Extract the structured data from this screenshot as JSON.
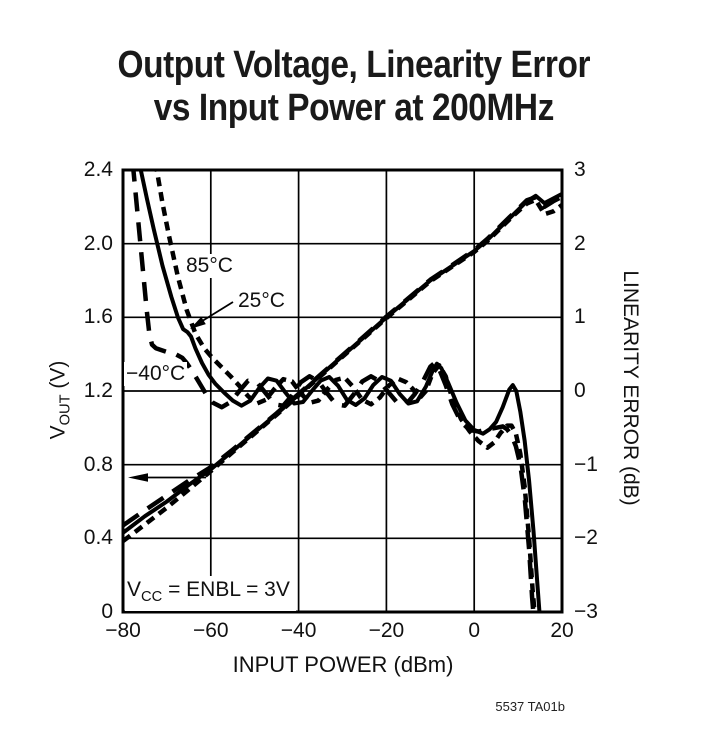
{
  "title": {
    "line1": "Output Voltage, Linearity Error",
    "line2": "vs Input Power at 200MHz"
  },
  "x_axis": {
    "title": "INPUT POWER (dBm)",
    "ticks": [
      {
        "v": -80,
        "label": "−80"
      },
      {
        "v": -60,
        "label": "−60"
      },
      {
        "v": -40,
        "label": "−40"
      },
      {
        "v": -20,
        "label": "−20"
      },
      {
        "v": 0,
        "label": "0"
      },
      {
        "v": 20,
        "label": "20"
      }
    ]
  },
  "y_left": {
    "title_main": "V",
    "title_sub": "OUT",
    "title_unit": " (V)",
    "ticks": [
      {
        "v": 0,
        "label": "0"
      },
      {
        "v": 0.4,
        "label": "0.4"
      },
      {
        "v": 0.8,
        "label": "0.8"
      },
      {
        "v": 1.2,
        "label": "1.2"
      },
      {
        "v": 1.6,
        "label": "1.6"
      },
      {
        "v": 2.0,
        "label": "2.0"
      },
      {
        "v": 2.4,
        "label": "2.4"
      }
    ]
  },
  "y_right": {
    "title": "LINEARITY ERROR (dB)",
    "ticks": [
      {
        "v": -3,
        "label": "−3"
      },
      {
        "v": -2,
        "label": "−2"
      },
      {
        "v": -1,
        "label": "−1"
      },
      {
        "v": 0,
        "label": "0"
      },
      {
        "v": 1,
        "label": "1"
      },
      {
        "v": 2,
        "label": "2"
      },
      {
        "v": 3,
        "label": "3"
      }
    ]
  },
  "annotations": {
    "t85": "85°C",
    "t25": "25°C",
    "tm40": "−40°C",
    "cond_v": "V",
    "cond_sub": "CC",
    "cond_rest": " = ENBL = 3V",
    "tag": "5537 TA01b"
  },
  "chart_data": {
    "type": "line",
    "title": "Output Voltage, Linearity Error vs Input Power at 200MHz",
    "xlabel": "INPUT POWER (dBm)",
    "ylabel_left": "VOUT (V)",
    "ylabel_right": "LINEARITY ERROR (dB)",
    "x_range": [
      -80,
      20
    ],
    "y_left_range": [
      0,
      2.4
    ],
    "y_right_range": [
      -3,
      3
    ],
    "grid": true,
    "legend_position": "inline-labels",
    "series": [
      {
        "name": "VOUT 25C",
        "temp": "25°C",
        "axis": "left",
        "style": "solid",
        "points": [
          [
            -80,
            0.43
          ],
          [
            -75,
            0.52
          ],
          [
            -70,
            0.6
          ],
          [
            -65,
            0.69
          ],
          [
            -60,
            0.775
          ],
          [
            -55,
            0.875
          ],
          [
            -50,
            0.975
          ],
          [
            -45,
            1.075
          ],
          [
            -40,
            1.18
          ],
          [
            -35,
            1.285
          ],
          [
            -30,
            1.39
          ],
          [
            -25,
            1.495
          ],
          [
            -20,
            1.6
          ],
          [
            -15,
            1.7
          ],
          [
            -10,
            1.8
          ],
          [
            -5,
            1.88
          ],
          [
            0,
            1.96
          ],
          [
            3,
            2.02
          ],
          [
            6,
            2.09
          ],
          [
            9,
            2.16
          ],
          [
            12,
            2.23
          ],
          [
            14,
            2.26
          ],
          [
            16,
            2.22
          ],
          [
            18,
            2.245
          ],
          [
            20,
            2.27
          ]
        ]
      },
      {
        "name": "VOUT 85C",
        "temp": "85°C",
        "axis": "left",
        "style": "dash",
        "points": [
          [
            -80,
            0.385
          ],
          [
            -75,
            0.475
          ],
          [
            -70,
            0.567
          ],
          [
            -65,
            0.665
          ],
          [
            -60,
            0.765
          ],
          [
            -55,
            0.868
          ],
          [
            -50,
            0.97
          ],
          [
            -45,
            1.071
          ],
          [
            -40,
            1.176
          ],
          [
            -35,
            1.281
          ],
          [
            -30,
            1.386
          ],
          [
            -25,
            1.491
          ],
          [
            -20,
            1.596
          ],
          [
            -15,
            1.696
          ],
          [
            -10,
            1.796
          ],
          [
            -5,
            1.876
          ],
          [
            0,
            1.955
          ],
          [
            3,
            2.014
          ],
          [
            6,
            2.084
          ],
          [
            9,
            2.154
          ],
          [
            12,
            2.218
          ],
          [
            14,
            2.238
          ],
          [
            16,
            2.16
          ],
          [
            18,
            2.175
          ],
          [
            20,
            2.21
          ]
        ]
      },
      {
        "name": "VOUT -40C",
        "temp": "−40°C",
        "axis": "left",
        "style": "longdash",
        "points": [
          [
            -80,
            0.47
          ],
          [
            -75,
            0.553
          ],
          [
            -70,
            0.633
          ],
          [
            -65,
            0.713
          ],
          [
            -60,
            0.786
          ],
          [
            -55,
            0.882
          ],
          [
            -50,
            0.98
          ],
          [
            -45,
            1.079
          ],
          [
            -40,
            1.184
          ],
          [
            -35,
            1.289
          ],
          [
            -30,
            1.394
          ],
          [
            -25,
            1.499
          ],
          [
            -20,
            1.604
          ],
          [
            -15,
            1.704
          ],
          [
            -10,
            1.804
          ],
          [
            -5,
            1.884
          ],
          [
            0,
            1.965
          ],
          [
            3,
            2.026
          ],
          [
            6,
            2.096
          ],
          [
            9,
            2.166
          ],
          [
            12,
            2.236
          ],
          [
            14,
            2.252
          ],
          [
            16,
            2.2
          ],
          [
            18,
            2.23
          ],
          [
            20,
            2.255
          ]
        ]
      },
      {
        "name": "LINEARITY ERROR 25C",
        "temp": "25°C",
        "axis": "right",
        "style": "solid",
        "points": [
          [
            -76.3,
            3.1
          ],
          [
            -74.5,
            2.6
          ],
          [
            -73,
            2.2
          ],
          [
            -71,
            1.7
          ],
          [
            -69,
            1.28
          ],
          [
            -67.5,
            1.0
          ],
          [
            -66.3,
            0.84
          ],
          [
            -65.3,
            0.8
          ],
          [
            -64.5,
            0.74
          ],
          [
            -63.5,
            0.58
          ],
          [
            -62,
            0.38
          ],
          [
            -60.5,
            0.22
          ],
          [
            -59,
            0.1
          ],
          [
            -57,
            -0.02
          ],
          [
            -55,
            -0.13
          ],
          [
            -53,
            -0.2
          ],
          [
            -51,
            -0.13
          ],
          [
            -49,
            0.04
          ],
          [
            -47,
            0.17
          ],
          [
            -45,
            0.14
          ],
          [
            -43,
            -0.02
          ],
          [
            -41,
            -0.17
          ],
          [
            -39,
            -0.15
          ],
          [
            -37,
            0.0
          ],
          [
            -35,
            0.14
          ],
          [
            -33,
            0.19
          ],
          [
            -31,
            0.07
          ],
          [
            -29,
            -0.12
          ],
          [
            -27,
            -0.19
          ],
          [
            -25,
            -0.1
          ],
          [
            -23,
            0.08
          ],
          [
            -21,
            0.19
          ],
          [
            -19,
            0.14
          ],
          [
            -17,
            -0.04
          ],
          [
            -15,
            -0.17
          ],
          [
            -13,
            -0.14
          ],
          [
            -11,
            0.06
          ],
          [
            -9.5,
            0.27
          ],
          [
            -8.5,
            0.37
          ],
          [
            -7.5,
            0.31
          ],
          [
            -6,
            0.12
          ],
          [
            -4,
            -0.16
          ],
          [
            -2,
            -0.4
          ],
          [
            0,
            -0.53
          ],
          [
            2,
            -0.58
          ],
          [
            3.5,
            -0.52
          ],
          [
            5,
            -0.42
          ],
          [
            6.5,
            -0.22
          ],
          [
            8,
            0.02
          ],
          [
            8.8,
            0.08
          ],
          [
            9.6,
            0.0
          ],
          [
            10.5,
            -0.28
          ],
          [
            11.5,
            -0.68
          ],
          [
            12.5,
            -1.22
          ],
          [
            13.5,
            -1.9
          ],
          [
            14.3,
            -2.55
          ],
          [
            15,
            -3.1
          ]
        ]
      },
      {
        "name": "LINEARITY ERROR 85C",
        "temp": "85°C",
        "axis": "right",
        "style": "dash",
        "points": [
          [
            -72.6,
            3.1
          ],
          [
            -71,
            2.55
          ],
          [
            -69.5,
            2.1
          ],
          [
            -67.5,
            1.55
          ],
          [
            -65.5,
            1.1
          ],
          [
            -63.5,
            0.78
          ],
          [
            -61.5,
            0.58
          ],
          [
            -59.5,
            0.44
          ],
          [
            -57.5,
            0.32
          ],
          [
            -55.5,
            0.2
          ],
          [
            -53.5,
            0.07
          ],
          [
            -51.5,
            -0.07
          ],
          [
            -49.5,
            -0.17
          ],
          [
            -47.5,
            -0.12
          ],
          [
            -45.5,
            0.03
          ],
          [
            -43.5,
            0.16
          ],
          [
            -41.5,
            0.13
          ],
          [
            -39.5,
            -0.03
          ],
          [
            -37.5,
            -0.16
          ],
          [
            -35.5,
            -0.13
          ],
          [
            -33.5,
            0.02
          ],
          [
            -31.5,
            0.15
          ],
          [
            -29.5,
            0.18
          ],
          [
            -27.5,
            0.05
          ],
          [
            -25.5,
            -0.12
          ],
          [
            -23.5,
            -0.18
          ],
          [
            -21.5,
            -0.09
          ],
          [
            -19.5,
            0.07
          ],
          [
            -17.5,
            0.17
          ],
          [
            -15.5,
            0.12
          ],
          [
            -14,
            0.03
          ],
          [
            -12.5,
            -0.1
          ],
          [
            -11,
            0.0
          ],
          [
            -9.5,
            0.24
          ],
          [
            -8,
            0.35
          ],
          [
            -6.5,
            0.2
          ],
          [
            -5,
            -0.1
          ],
          [
            -3,
            -0.38
          ],
          [
            -1,
            -0.55
          ],
          [
            1,
            -0.68
          ],
          [
            3,
            -0.77
          ],
          [
            4.5,
            -0.7
          ],
          [
            6,
            -0.57
          ],
          [
            7.5,
            -0.47
          ],
          [
            8.5,
            -0.47
          ],
          [
            9.5,
            -0.58
          ],
          [
            10.5,
            -0.85
          ],
          [
            11.5,
            -1.3
          ],
          [
            12.5,
            -2.0
          ],
          [
            13.3,
            -2.7
          ],
          [
            13.9,
            -3.1
          ]
        ]
      },
      {
        "name": "LINEARITY ERROR -40C",
        "temp": "−40°C",
        "axis": "right",
        "style": "longdash",
        "points": [
          [
            -77.8,
            3.1
          ],
          [
            -77,
            2.6
          ],
          [
            -76.2,
            2.1
          ],
          [
            -75.4,
            1.6
          ],
          [
            -74.6,
            1.1
          ],
          [
            -74,
            0.78
          ],
          [
            -73.4,
            0.63
          ],
          [
            -72.5,
            0.58
          ],
          [
            -71,
            0.55
          ],
          [
            -69.5,
            0.52
          ],
          [
            -68,
            0.5
          ],
          [
            -66.5,
            0.45
          ],
          [
            -65.5,
            0.38
          ],
          [
            -64,
            0.25
          ],
          [
            -62.5,
            0.1
          ],
          [
            -61,
            -0.05
          ],
          [
            -59.5,
            -0.16
          ],
          [
            -57.5,
            -0.22
          ],
          [
            -55.5,
            -0.15
          ],
          [
            -53.5,
            0.0
          ],
          [
            -51.5,
            0.14
          ],
          [
            -49.5,
            0.12
          ],
          [
            -47.5,
            -0.03
          ],
          [
            -45.5,
            -0.18
          ],
          [
            -43.5,
            -0.2
          ],
          [
            -41.5,
            -0.06
          ],
          [
            -39.5,
            0.12
          ],
          [
            -37.5,
            0.2
          ],
          [
            -35.5,
            0.13
          ],
          [
            -33.5,
            -0.03
          ],
          [
            -31.5,
            -0.18
          ],
          [
            -29.5,
            -0.2
          ],
          [
            -27.5,
            -0.05
          ],
          [
            -25.5,
            0.13
          ],
          [
            -23.5,
            0.2
          ],
          [
            -21.5,
            0.13
          ],
          [
            -19.5,
            -0.02
          ],
          [
            -17.5,
            -0.16
          ],
          [
            -15.5,
            -0.18
          ],
          [
            -13.5,
            -0.04
          ],
          [
            -11.5,
            0.15
          ],
          [
            -10,
            0.33
          ],
          [
            -9,
            0.38
          ],
          [
            -8,
            0.3
          ],
          [
            -6.5,
            0.08
          ],
          [
            -5,
            -0.18
          ],
          [
            -3,
            -0.42
          ],
          [
            -1,
            -0.53
          ],
          [
            1,
            -0.55
          ],
          [
            3,
            -0.52
          ],
          [
            5,
            -0.5
          ],
          [
            6.5,
            -0.48
          ],
          [
            7.5,
            -0.52
          ],
          [
            8.5,
            -0.6
          ],
          [
            9.5,
            -0.75
          ],
          [
            10.5,
            -1.0
          ],
          [
            11.5,
            -1.45
          ],
          [
            12.5,
            -2.15
          ],
          [
            13.2,
            -2.8
          ],
          [
            13.6,
            -3.1
          ]
        ]
      }
    ]
  }
}
